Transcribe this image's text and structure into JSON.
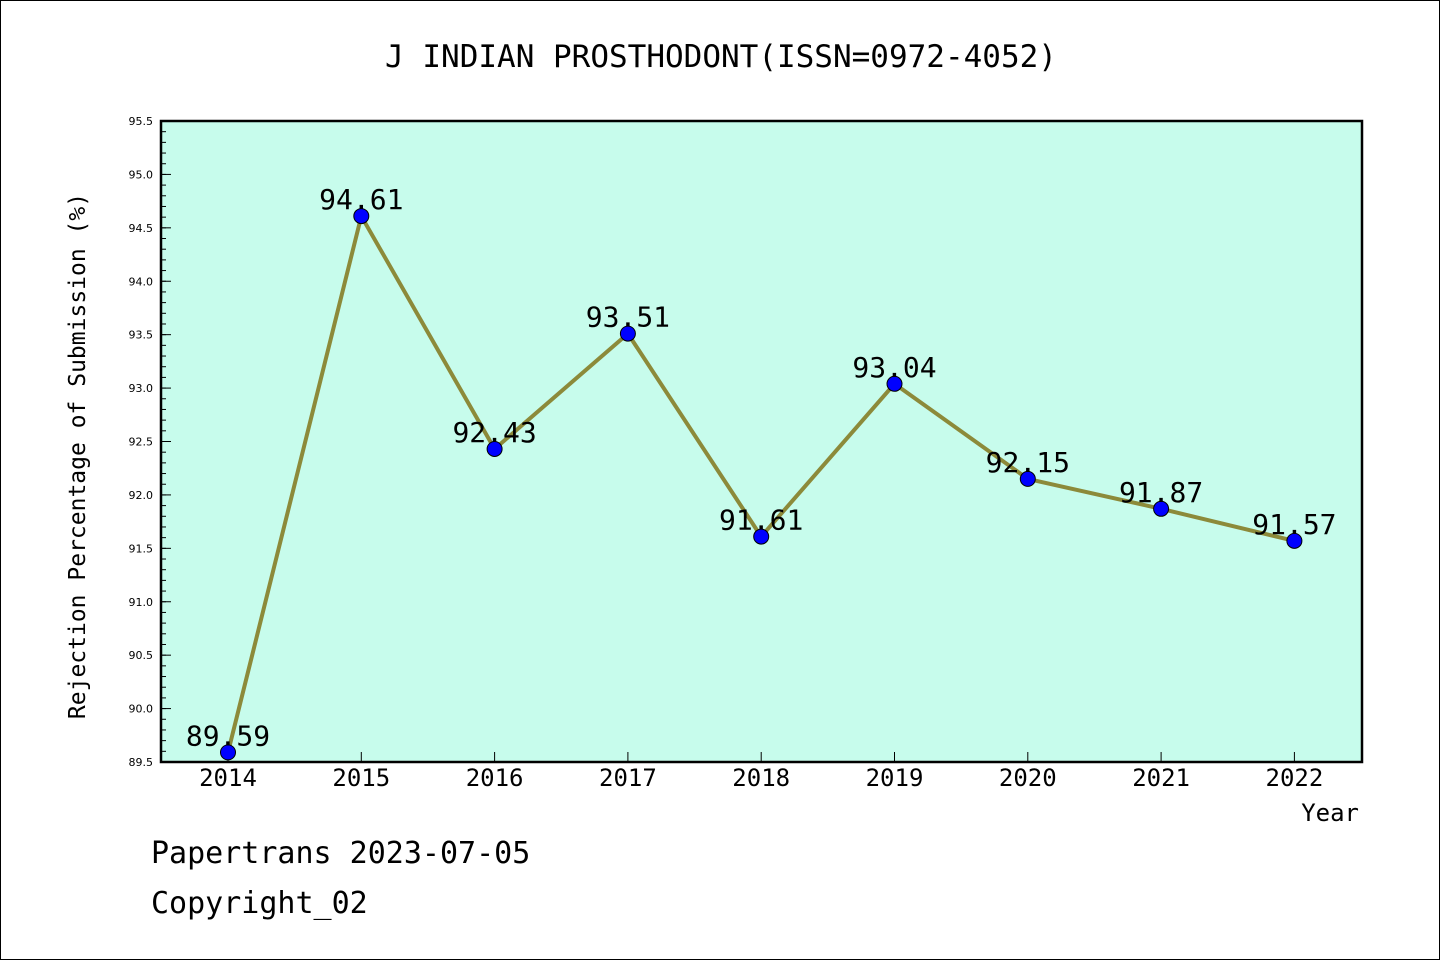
{
  "chart_data": {
    "type": "line",
    "title": "J INDIAN PROSTHODONT(ISSN=0972-4052)",
    "xlabel": "Year",
    "ylabel": "Rejection Percentage of Submission (%)",
    "categories": [
      "2014",
      "2015",
      "2016",
      "2017",
      "2018",
      "2019",
      "2020",
      "2021",
      "2022"
    ],
    "values": [
      89.59,
      94.61,
      92.43,
      93.51,
      91.61,
      93.04,
      92.15,
      91.87,
      91.57
    ],
    "data_labels": [
      "89.59",
      "94.61",
      "92.43",
      "93.51",
      "91.61",
      "93.04",
      "92.15",
      "91.87",
      "91.57"
    ],
    "ylim": [
      89.5,
      95.5
    ],
    "y_ticks": [
      "89.5",
      "90.0",
      "90.5",
      "91.0",
      "91.5",
      "92.0",
      "92.5",
      "93.0",
      "93.5",
      "94.0",
      "94.5",
      "95.0",
      "95.5"
    ],
    "grid": false,
    "legend": "none",
    "colors": {
      "plot_background": "#c7fcec",
      "line": "#8c8a3a",
      "marker": "#0000ff"
    }
  },
  "footer": {
    "line1": "Papertrans 2023-07-05",
    "line2": "Copyright_02"
  }
}
